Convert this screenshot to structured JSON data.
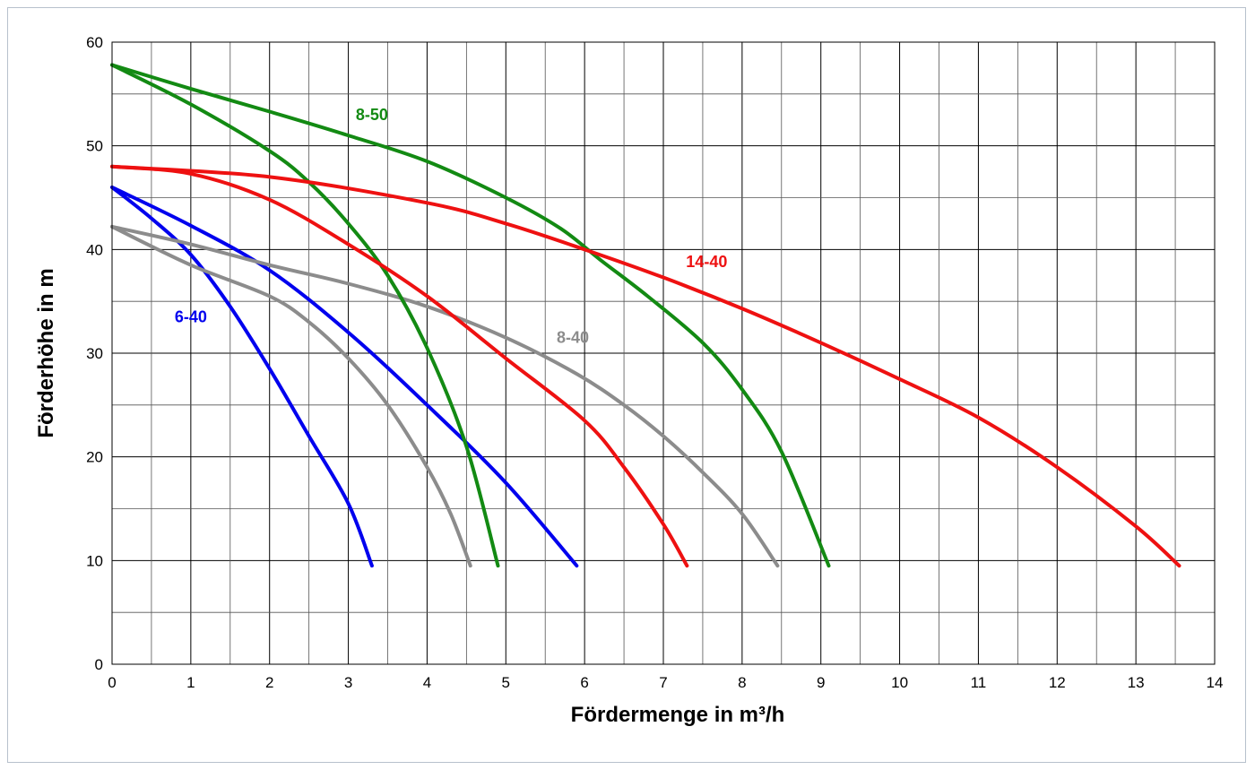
{
  "chart_data": {
    "type": "line",
    "xlabel": "Fördermenge in m³/h",
    "ylabel": "Förderhöhe in m",
    "xlim": [
      0,
      14
    ],
    "ylim": [
      0,
      60
    ],
    "x_ticks": [
      "0",
      "1",
      "2",
      "3",
      "4",
      "5",
      "6",
      "7",
      "8",
      "9",
      "10",
      "11",
      "12",
      "13",
      "14"
    ],
    "y_ticks": [
      "0",
      "10",
      "20",
      "30",
      "40",
      "50",
      "60"
    ],
    "grid": true,
    "series": [
      {
        "name": "6-40",
        "color": "#0000ee",
        "line": 1,
        "x": [
          0,
          0.5,
          1.0,
          1.5,
          2.0,
          2.5,
          3.0,
          3.3
        ],
        "y": [
          46.0,
          43.0,
          39.5,
          34.5,
          28.5,
          22.0,
          15.5,
          9.5
        ]
      },
      {
        "name": "6-40",
        "color": "#0000ee",
        "line": 2,
        "x": [
          0,
          1.0,
          2.0,
          3.0,
          4.0,
          5.0,
          5.9
        ],
        "y": [
          46.0,
          42.3,
          38.0,
          32.0,
          25.0,
          17.5,
          9.5
        ]
      },
      {
        "name": "8-40",
        "color": "#8c8c8c",
        "line": 1,
        "x": [
          0,
          1.0,
          2.0,
          2.5,
          3.0,
          3.5,
          4.0,
          4.3,
          4.55
        ],
        "y": [
          42.2,
          38.5,
          35.5,
          33.0,
          29.5,
          25.0,
          19.0,
          14.5,
          9.5
        ]
      },
      {
        "name": "8-40",
        "color": "#8c8c8c",
        "line": 2,
        "x": [
          0,
          1.0,
          2.0,
          3.0,
          4.0,
          5.0,
          5.9,
          6.5,
          7.0,
          7.5,
          8.0,
          8.45
        ],
        "y": [
          42.2,
          40.5,
          38.5,
          36.7,
          34.5,
          31.5,
          28.0,
          25.0,
          22.0,
          18.5,
          14.5,
          9.5
        ]
      },
      {
        "name": "8-50",
        "color": "#138a13",
        "line": 1,
        "x": [
          0,
          1.0,
          2.0,
          2.5,
          3.0,
          3.5,
          4.0,
          4.5,
          4.9
        ],
        "y": [
          57.8,
          54.0,
          49.5,
          46.5,
          42.5,
          37.5,
          30.5,
          21.0,
          9.5
        ]
      },
      {
        "name": "8-50",
        "color": "#138a13",
        "line": 2,
        "x": [
          0,
          1.0,
          2.0,
          3.0,
          4.0,
          5.0,
          5.7,
          6.2,
          6.8,
          7.5,
          8.0,
          8.5,
          9.1
        ],
        "y": [
          57.8,
          55.5,
          53.3,
          51.0,
          48.5,
          45.0,
          42.0,
          39.0,
          35.5,
          31.0,
          26.5,
          20.5,
          9.5
        ]
      },
      {
        "name": "14-40",
        "color": "#ee1111",
        "line": 1,
        "x": [
          0,
          1.0,
          2.0,
          3.0,
          4.0,
          5.0,
          6.0,
          6.5,
          7.0,
          7.3
        ],
        "y": [
          48.0,
          47.3,
          44.8,
          40.5,
          35.5,
          29.5,
          23.5,
          19.0,
          13.5,
          9.5
        ]
      },
      {
        "name": "14-40",
        "color": "#ee1111",
        "line": 2,
        "x": [
          0,
          2.0,
          4.0,
          5.0,
          6.0,
          7.0,
          8.0,
          9.0,
          10.0,
          11.0,
          12.0,
          13.0,
          13.55
        ],
        "y": [
          48.0,
          47.0,
          44.5,
          42.5,
          40.0,
          37.3,
          34.3,
          31.0,
          27.5,
          23.8,
          19.0,
          13.3,
          9.5
        ]
      }
    ],
    "labels": [
      {
        "text": "6-40",
        "x": 1.0,
        "y": 33.0,
        "color": "#0000ee"
      },
      {
        "text": "8-40",
        "x": 5.85,
        "y": 31.0,
        "color": "#8c8c8c"
      },
      {
        "text": "8-50",
        "x": 3.3,
        "y": 52.5,
        "color": "#138a13"
      },
      {
        "text": "14-40",
        "x": 7.55,
        "y": 38.3,
        "color": "#ee1111"
      }
    ]
  }
}
